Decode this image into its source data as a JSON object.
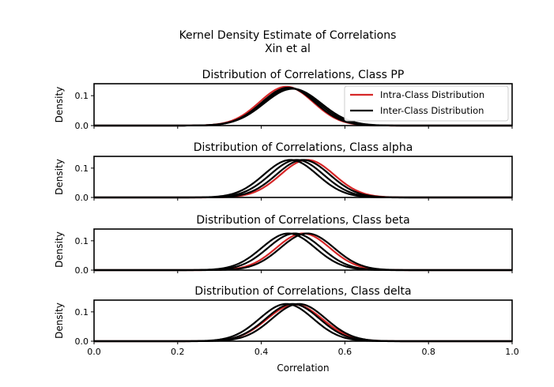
{
  "figure": {
    "title": "Kernel Density Estimate of Correlations",
    "subtitle": "Xin et al"
  },
  "colors": {
    "intra": "#d62728",
    "inter": "#000000"
  },
  "chart_data": [
    {
      "type": "line",
      "title": "Distribution of Correlations, Class PP",
      "ylabel": "Density",
      "xlabel": "",
      "xlim": [
        0.0,
        1.0
      ],
      "ylim": [
        0.0,
        0.14
      ],
      "yticks": [
        0.0,
        0.1
      ],
      "xticks": [
        0.0,
        0.2,
        0.4,
        0.6,
        0.8,
        1.0
      ],
      "show_xtick_labels": false,
      "legend": {
        "position": "upper-right",
        "entries": [
          "Intra-Class Distribution",
          "Inter-Class Distribution"
        ]
      },
      "series": [
        {
          "name": "Intra-Class Distribution",
          "color": "#d62728",
          "mean": 0.46,
          "sd": 0.064,
          "peak": 0.13
        },
        {
          "name": "Inter-Class Distribution",
          "color": "#000000",
          "mean": 0.465,
          "sd": 0.064,
          "peak": 0.127
        },
        {
          "name": "Inter-Class Distribution",
          "color": "#000000",
          "mean": 0.47,
          "sd": 0.066,
          "peak": 0.125
        },
        {
          "name": "Inter-Class Distribution",
          "color": "#000000",
          "mean": 0.475,
          "sd": 0.068,
          "peak": 0.123
        }
      ]
    },
    {
      "type": "line",
      "title": "Distribution of Correlations, Class alpha",
      "ylabel": "Density",
      "xlabel": "",
      "xlim": [
        0.0,
        1.0
      ],
      "ylim": [
        0.0,
        0.14
      ],
      "yticks": [
        0.0,
        0.1
      ],
      "xticks": [
        0.0,
        0.2,
        0.4,
        0.6,
        0.8,
        1.0
      ],
      "show_xtick_labels": false,
      "series": [
        {
          "name": "Intra-Class Distribution",
          "color": "#d62728",
          "mean": 0.51,
          "sd": 0.064,
          "peak": 0.128
        },
        {
          "name": "Inter-Class Distribution",
          "color": "#000000",
          "mean": 0.47,
          "sd": 0.064,
          "peak": 0.128
        },
        {
          "name": "Inter-Class Distribution",
          "color": "#000000",
          "mean": 0.485,
          "sd": 0.064,
          "peak": 0.128
        },
        {
          "name": "Inter-Class Distribution",
          "color": "#000000",
          "mean": 0.5,
          "sd": 0.064,
          "peak": 0.128
        }
      ]
    },
    {
      "type": "line",
      "title": "Distribution of Correlations, Class beta",
      "ylabel": "Density",
      "xlabel": "",
      "xlim": [
        0.0,
        1.0
      ],
      "ylim": [
        0.0,
        0.14
      ],
      "yticks": [
        0.0,
        0.1
      ],
      "xticks": [
        0.0,
        0.2,
        0.4,
        0.6,
        0.8,
        1.0
      ],
      "show_xtick_labels": false,
      "series": [
        {
          "name": "Intra-Class Distribution",
          "color": "#d62728",
          "mean": 0.5,
          "sd": 0.064,
          "peak": 0.125
        },
        {
          "name": "Inter-Class Distribution",
          "color": "#000000",
          "mean": 0.465,
          "sd": 0.064,
          "peak": 0.125
        },
        {
          "name": "Inter-Class Distribution",
          "color": "#000000",
          "mean": 0.48,
          "sd": 0.064,
          "peak": 0.125
        },
        {
          "name": "Inter-Class Distribution",
          "color": "#000000",
          "mean": 0.51,
          "sd": 0.064,
          "peak": 0.125
        }
      ]
    },
    {
      "type": "line",
      "title": "Distribution of Correlations, Class delta",
      "ylabel": "Density",
      "xlabel": "Correlation",
      "xlim": [
        0.0,
        1.0
      ],
      "ylim": [
        0.0,
        0.14
      ],
      "yticks": [
        0.0,
        0.1
      ],
      "xticks": [
        0.0,
        0.2,
        0.4,
        0.6,
        0.8,
        1.0
      ],
      "show_xtick_labels": true,
      "series": [
        {
          "name": "Intra-Class Distribution",
          "color": "#d62728",
          "mean": 0.48,
          "sd": 0.066,
          "peak": 0.125
        },
        {
          "name": "Inter-Class Distribution",
          "color": "#000000",
          "mean": 0.46,
          "sd": 0.064,
          "peak": 0.127
        },
        {
          "name": "Inter-Class Distribution",
          "color": "#000000",
          "mean": 0.475,
          "sd": 0.064,
          "peak": 0.127
        },
        {
          "name": "Inter-Class Distribution",
          "color": "#000000",
          "mean": 0.49,
          "sd": 0.064,
          "peak": 0.127
        }
      ]
    }
  ]
}
